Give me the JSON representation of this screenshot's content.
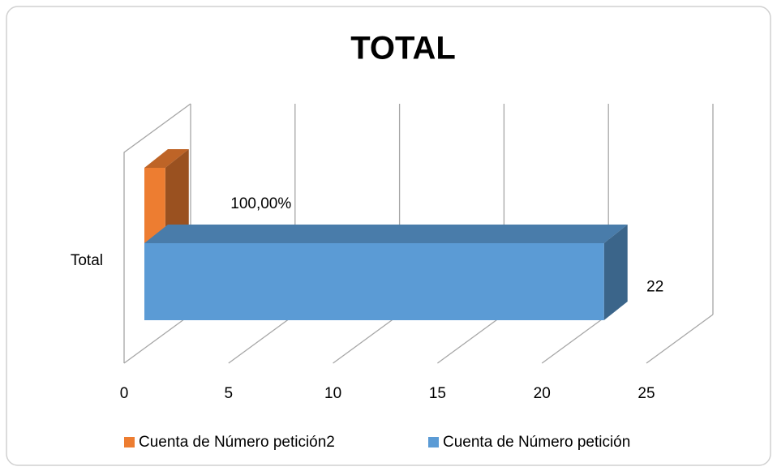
{
  "chart_data": {
    "type": "bar3d",
    "orientation": "horizontal",
    "title": "TOTAL",
    "categories": [
      "Total"
    ],
    "series": [
      {
        "name": "Cuenta de Número petición2",
        "color": "#ed7d31",
        "values": [
          1
        ],
        "value_labels": [
          "100,00%"
        ]
      },
      {
        "name": "Cuenta de Número petición",
        "color": "#5b9bd5",
        "values": [
          22
        ]
      }
    ],
    "xlim": [
      0,
      25
    ],
    "xticks": [
      0,
      5,
      10,
      15,
      20,
      25
    ],
    "grid": true,
    "legend": "bottom"
  }
}
